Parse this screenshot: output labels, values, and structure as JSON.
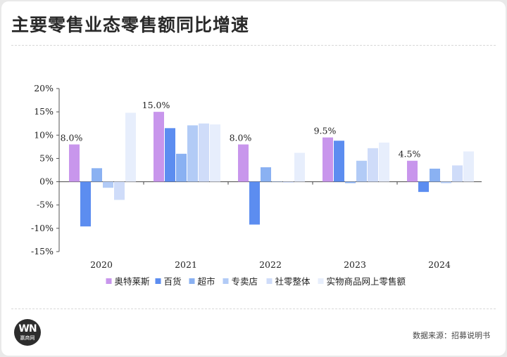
{
  "title": "主要零售业态零售额同比增速",
  "source": "数据来源：招募说明书",
  "logo": {
    "mark": "WN",
    "text": "赢商网"
  },
  "colors": [
    "#c896ec",
    "#5c8df0",
    "#8ab1f2",
    "#b2cbf6",
    "#cfdcf9",
    "#e7eefc"
  ],
  "chart_data": {
    "type": "bar",
    "title": "主要零售业态零售额同比增速",
    "xlabel": "",
    "ylabel": "",
    "ylim": [
      -15,
      20
    ],
    "ytick_labels": [
      "20%",
      "15%",
      "10%",
      "5%",
      "0%",
      "-5%",
      "-10%",
      "-15%"
    ],
    "yticks": [
      20,
      15,
      10,
      5,
      0,
      -5,
      -10,
      -15
    ],
    "categories": [
      "2020",
      "2021",
      "2022",
      "2023",
      "2024"
    ],
    "series": [
      {
        "name": "奥特莱斯",
        "values": [
          8.0,
          15.0,
          8.0,
          9.5,
          4.5
        ]
      },
      {
        "name": "百货",
        "values": [
          -9.6,
          11.5,
          -9.2,
          8.8,
          -2.2
        ]
      },
      {
        "name": "超市",
        "values": [
          2.9,
          6.0,
          3.1,
          -0.3,
          2.8
        ]
      },
      {
        "name": "专卖店",
        "values": [
          -1.3,
          12.1,
          0.1,
          4.5,
          -0.3
        ]
      },
      {
        "name": "社零整体",
        "values": [
          -3.9,
          12.5,
          -0.2,
          7.2,
          3.5
        ]
      },
      {
        "name": "实物商品网上零售额",
        "values": [
          14.8,
          12.3,
          6.2,
          8.4,
          6.5
        ]
      }
    ],
    "data_labels": [
      "8.0%",
      "15.0%",
      "8.0%",
      "9.5%",
      "4.5%"
    ],
    "grid": false,
    "legend_position": "bottom"
  }
}
